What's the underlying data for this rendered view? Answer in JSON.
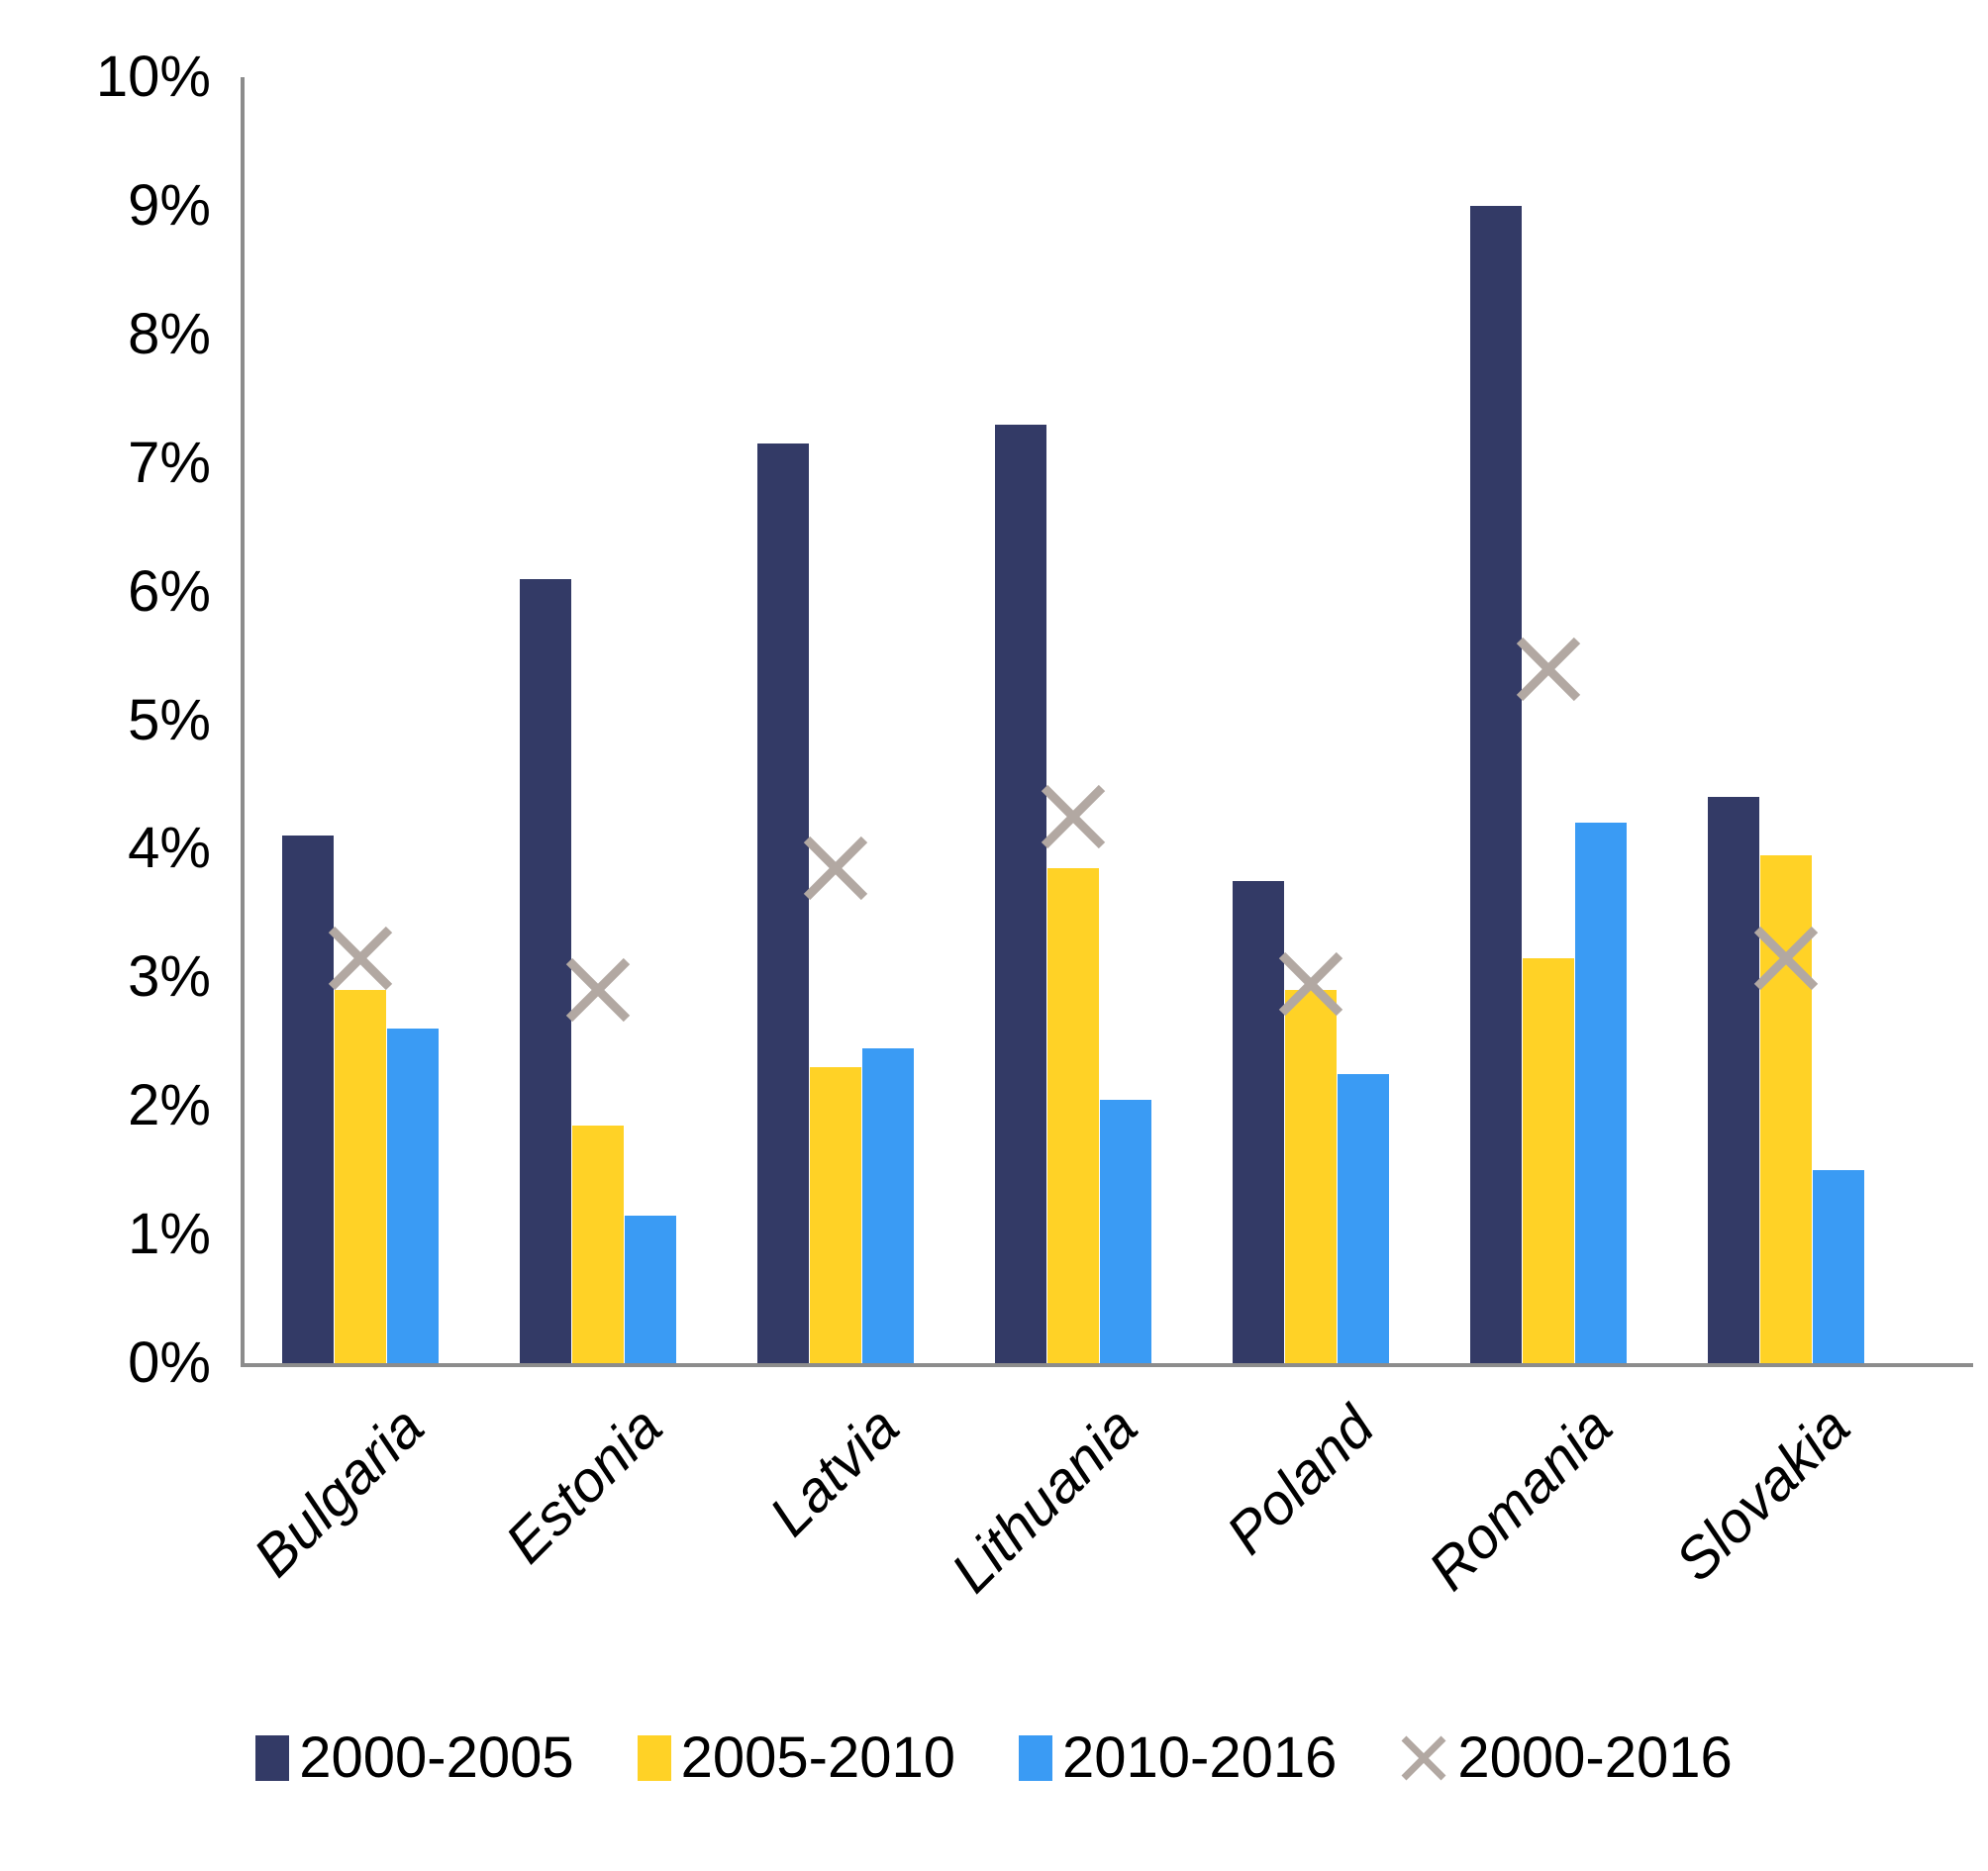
{
  "chart_data": {
    "type": "bar",
    "title": "",
    "categories": [
      "Bulgaria",
      "Estonia",
      "Latvia",
      "Lithuania",
      "Poland",
      "Romania",
      "Slovakia"
    ],
    "series": [
      {
        "name": "2000-2005",
        "render": "bar",
        "color": "#333a66",
        "values": [
          4.1,
          6.1,
          7.15,
          7.3,
          3.75,
          9.0,
          4.4
        ]
      },
      {
        "name": "2005-2010",
        "render": "bar",
        "color": "#ffd226",
        "values": [
          2.9,
          1.85,
          2.3,
          3.85,
          2.9,
          3.15,
          3.95
        ]
      },
      {
        "name": "2010-2016",
        "render": "bar",
        "color": "#3a9bf4",
        "values": [
          2.6,
          1.15,
          2.45,
          2.05,
          2.25,
          4.2,
          1.5
        ]
      },
      {
        "name": "2000-2016",
        "render": "marker-x",
        "color": "#b2a8a2",
        "values": [
          3.15,
          2.9,
          3.85,
          4.25,
          2.95,
          5.4,
          3.15
        ]
      }
    ],
    "y_axis": {
      "min": 0,
      "max": 10,
      "step": 1,
      "tick_labels": [
        "0%",
        "1%",
        "2%",
        "3%",
        "4%",
        "5%",
        "6%",
        "7%",
        "8%",
        "9%",
        "10%"
      ]
    },
    "x_axis": {
      "tick_labels": [
        "Bulgaria",
        "Estonia",
        "Latvia",
        "Lithuania",
        "Poland",
        "Romania",
        "Slovakia"
      ]
    },
    "legend": {
      "position": "bottom",
      "items": [
        {
          "label": "2000-2005",
          "marker": "square",
          "color": "#333a66"
        },
        {
          "label": "2005-2010",
          "marker": "square",
          "color": "#ffd226"
        },
        {
          "label": "2010-2016",
          "marker": "square",
          "color": "#3a9bf4"
        },
        {
          "label": "2000-2016",
          "marker": "x",
          "color": "#b2a8a2"
        }
      ]
    },
    "grid": false,
    "axis_color": "#8c8c8c",
    "background_color": "#ffffff"
  }
}
